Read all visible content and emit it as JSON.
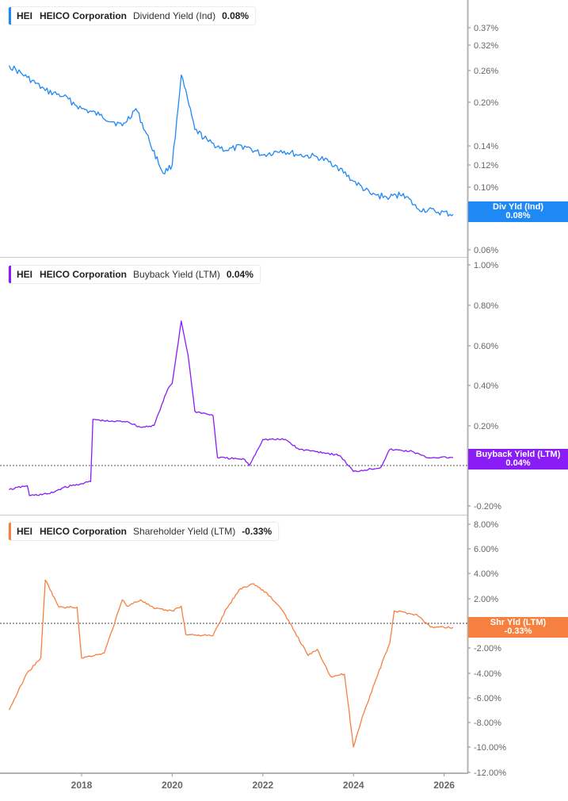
{
  "colors": {
    "dividend": "#1e88f5",
    "buyback": "#8a1cf6",
    "shareholder": "#f6803f",
    "axis": "#b3b3b3",
    "tick_text": "#666666",
    "zero_line": "#555555"
  },
  "panels": [
    {
      "ticker": "HEI",
      "company": "HEICO Corporation",
      "metric": "Dividend Yield (Ind)",
      "value": "0.08%",
      "badge_line1": "Div Yld (Ind)",
      "badge_line2": "0.08%"
    },
    {
      "ticker": "HEI",
      "company": "HEICO Corporation",
      "metric": "Buyback Yield (LTM)",
      "value": "0.04%",
      "badge_line1": "Buyback Yield (LTM)",
      "badge_line2": "0.04%"
    },
    {
      "ticker": "HEI",
      "company": "HEICO Corporation",
      "metric": "Shareholder Yield (LTM)",
      "value": "-0.33%",
      "badge_line1": "Shr Yld (LTM)",
      "badge_line2": "-0.33%"
    }
  ],
  "x_axis": {
    "ticks": [
      "2018",
      "2020",
      "2022",
      "2024",
      "2026"
    ]
  },
  "chart_data": [
    {
      "type": "line",
      "title": "HEI HEICO Corporation Dividend Yield (Ind)",
      "series": [
        {
          "name": "Dividend Yield (Ind)",
          "color": "#1e88f5"
        }
      ],
      "y_scale": "log",
      "y_ticks": [
        "0.37%",
        "0.32%",
        "0.26%",
        "0.20%",
        "0.14%",
        "0.12%",
        "0.10%",
        "0.08%",
        "0.06%"
      ],
      "x": [
        2016.4,
        2016.8,
        2017.2,
        2017.6,
        2018.0,
        2018.4,
        2018.9,
        2019.2,
        2019.5,
        2019.8,
        2020.0,
        2020.2,
        2020.5,
        2020.8,
        2021.2,
        2021.6,
        2022.0,
        2022.4,
        2022.8,
        2023.2,
        2023.6,
        2024.0,
        2024.4,
        2024.8,
        2025.1,
        2025.4,
        2025.8,
        2026.2
      ],
      "values": [
        0.27,
        0.245,
        0.22,
        0.21,
        0.19,
        0.18,
        0.165,
        0.19,
        0.145,
        0.112,
        0.12,
        0.25,
        0.16,
        0.145,
        0.135,
        0.14,
        0.13,
        0.135,
        0.13,
        0.128,
        0.12,
        0.105,
        0.094,
        0.092,
        0.095,
        0.084,
        0.082,
        0.08
      ],
      "ylabel": "",
      "xlabel": ""
    },
    {
      "type": "line",
      "title": "HEI HEICO Corporation Buyback Yield (LTM)",
      "series": [
        {
          "name": "Buyback Yield (LTM)",
          "color": "#8a1cf6"
        }
      ],
      "y_ticks": [
        "1.00%",
        "0.80%",
        "0.60%",
        "0.40%",
        "0.20%",
        "0.00%",
        "-0.20%"
      ],
      "ylim": [
        -0.22,
        1.02
      ],
      "x": [
        2016.4,
        2016.8,
        2016.85,
        2017.3,
        2017.6,
        2018.0,
        2018.2,
        2018.25,
        2018.6,
        2019.0,
        2019.3,
        2019.6,
        2019.9,
        2020.0,
        2020.2,
        2020.35,
        2020.5,
        2020.9,
        2021.0,
        2021.6,
        2021.7,
        2022.0,
        2022.5,
        2022.8,
        2023.2,
        2023.7,
        2024.0,
        2024.6,
        2024.8,
        2025.3,
        2025.6,
        2026.2
      ],
      "values": [
        -0.12,
        -0.1,
        -0.15,
        -0.14,
        -0.11,
        -0.09,
        -0.08,
        0.23,
        0.22,
        0.22,
        0.19,
        0.2,
        0.38,
        0.41,
        0.72,
        0.55,
        0.27,
        0.25,
        0.04,
        0.03,
        0.0,
        0.13,
        0.13,
        0.08,
        0.07,
        0.05,
        -0.03,
        -0.01,
        0.08,
        0.07,
        0.04,
        0.04
      ],
      "ylabel": "",
      "xlabel": ""
    },
    {
      "type": "line",
      "title": "HEI HEICO Corporation Shareholder Yield (LTM)",
      "series": [
        {
          "name": "Shareholder Yield (LTM)",
          "color": "#f6803f"
        }
      ],
      "y_ticks": [
        "8.00%",
        "6.00%",
        "4.00%",
        "2.00%",
        "0.00%",
        "-2.00%",
        "-4.00%",
        "-6.00%",
        "-8.00%",
        "-10.00%",
        "-12.00%"
      ],
      "ylim": [
        -12.0,
        8.0
      ],
      "x": [
        2016.4,
        2016.8,
        2017.1,
        2017.2,
        2017.5,
        2017.9,
        2018.0,
        2018.5,
        2018.9,
        2019.0,
        2019.3,
        2019.6,
        2020.0,
        2020.2,
        2020.3,
        2020.9,
        2021.2,
        2021.5,
        2021.8,
        2022.1,
        2022.4,
        2022.6,
        2023.0,
        2023.2,
        2023.5,
        2023.8,
        2024.0,
        2024.2,
        2024.5,
        2024.8,
        2024.9,
        2025.4,
        2025.7,
        2026.2
      ],
      "values": [
        -7.0,
        -4.0,
        -2.8,
        3.5,
        1.3,
        1.3,
        -2.8,
        -2.4,
        1.9,
        1.4,
        1.9,
        1.2,
        1.0,
        1.4,
        -0.9,
        -1.0,
        1.2,
        2.8,
        3.2,
        2.4,
        1.2,
        0.0,
        -2.6,
        -2.1,
        -4.3,
        -4.1,
        -10.0,
        -7.5,
        -4.5,
        -1.6,
        1.0,
        0.7,
        -0.3,
        -0.33
      ],
      "ylabel": "",
      "xlabel": ""
    }
  ]
}
